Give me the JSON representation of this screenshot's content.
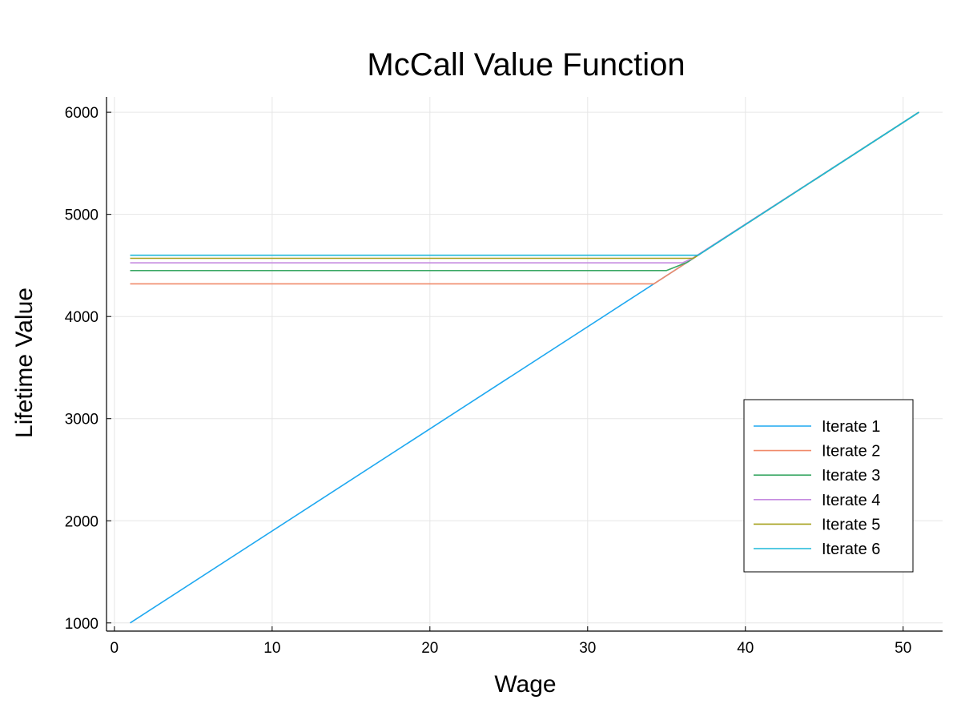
{
  "chart_data": {
    "type": "line",
    "title": "McCall Value Function",
    "xlabel": "Wage",
    "ylabel": "Lifetime Value",
    "xlim": [
      -0.5,
      52.5
    ],
    "ylim": [
      920,
      6150
    ],
    "xticks": [
      0,
      10,
      20,
      30,
      40,
      50
    ],
    "xtick_labels": [
      "0",
      "10",
      "20",
      "30",
      "40",
      "50"
    ],
    "yticks": [
      1000,
      2000,
      3000,
      4000,
      5000,
      6000
    ],
    "ytick_labels": [
      "1000",
      "2000",
      "3000",
      "4000",
      "5000",
      "6000"
    ],
    "grid": true,
    "legend_position": "bottom-right",
    "series": [
      {
        "name": "Iterate 1",
        "color": "#1ea8f0",
        "x": [
          1,
          51
        ],
        "y": [
          1000,
          6000
        ]
      },
      {
        "name": "Iterate 2",
        "color": "#f08a6a",
        "x": [
          1,
          34.2,
          51
        ],
        "y": [
          4320,
          4320,
          6000
        ]
      },
      {
        "name": "Iterate 3",
        "color": "#3aa864",
        "x": [
          1,
          35,
          36.3,
          51
        ],
        "y": [
          4450,
          4450,
          4530,
          6000
        ]
      },
      {
        "name": "Iterate 4",
        "color": "#c58ae0",
        "x": [
          1,
          36,
          36.6,
          51
        ],
        "y": [
          4525,
          4525,
          4565,
          6000
        ]
      },
      {
        "name": "Iterate 5",
        "color": "#a5a01a",
        "x": [
          1,
          36.7,
          51
        ],
        "y": [
          4570,
          4570,
          6000
        ]
      },
      {
        "name": "Iterate 6",
        "color": "#1fb8d8",
        "x": [
          1,
          37,
          51
        ],
        "y": [
          4600,
          4600,
          6000
        ]
      }
    ]
  }
}
